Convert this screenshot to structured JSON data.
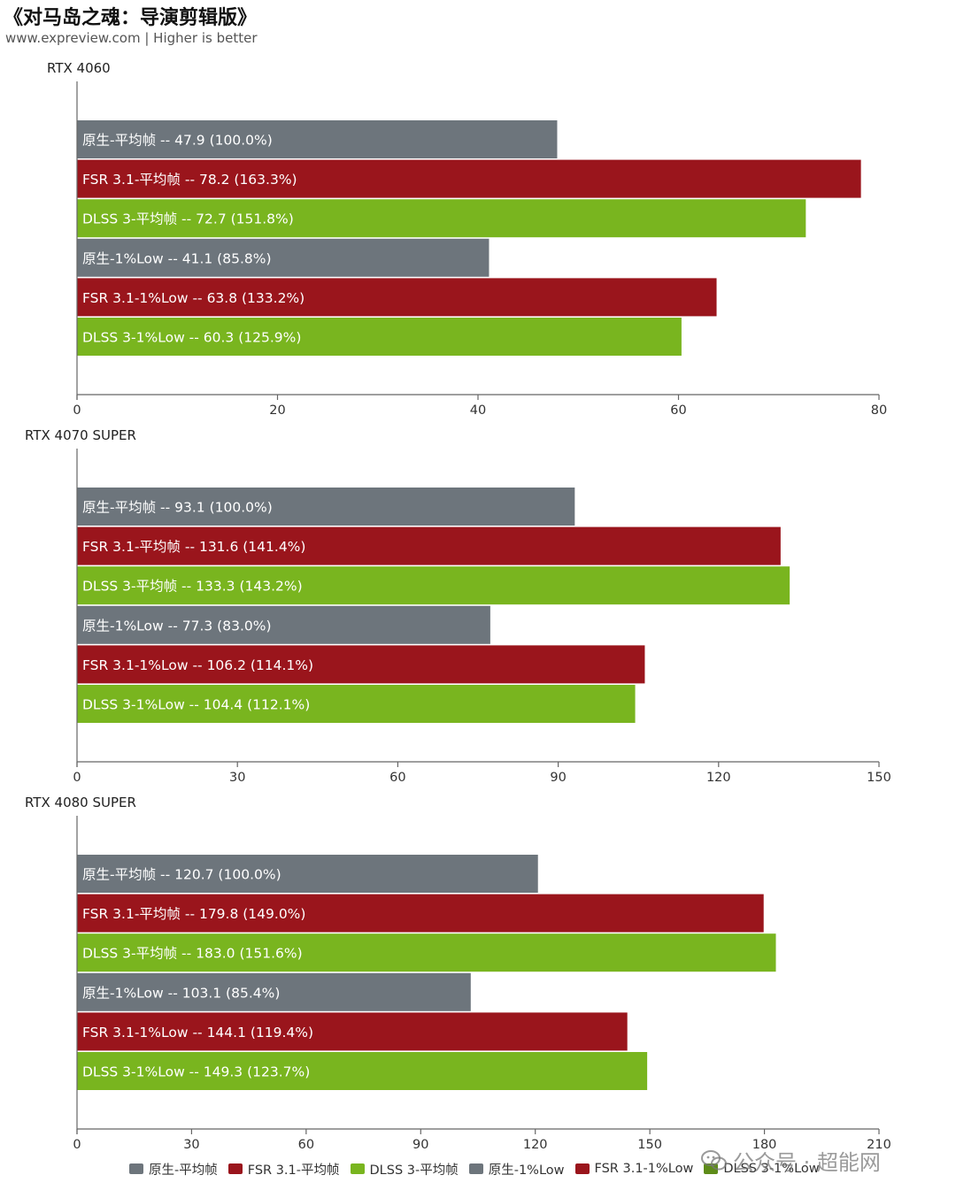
{
  "header": {
    "title": "《对马岛之魂：导演剪辑版》",
    "subtitle": "www.expreview.com | Higher is better"
  },
  "colors": {
    "native": "#6d757c",
    "fsr": "#9a151c",
    "dlss": "#79b51f",
    "axis": "#666666"
  },
  "chart_data": [
    {
      "type": "bar",
      "orientation": "horizontal",
      "title": "RTX 4060",
      "xlim": [
        0,
        80
      ],
      "ticks": [
        0,
        20,
        40,
        60,
        80
      ],
      "bars": [
        {
          "label": "原生-平均帧  --  47.9 (100.0%)",
          "value": 47.9,
          "series": "native"
        },
        {
          "label": "FSR 3.1-平均帧  --  78.2 (163.3%)",
          "value": 78.2,
          "series": "fsr"
        },
        {
          "label": "DLSS 3-平均帧  --  72.7 (151.8%)",
          "value": 72.7,
          "series": "dlss"
        },
        {
          "label": "原生-1%Low  --  41.1 (85.8%)",
          "value": 41.1,
          "series": "native"
        },
        {
          "label": "FSR 3.1-1%Low  --  63.8 (133.2%)",
          "value": 63.8,
          "series": "fsr"
        },
        {
          "label": "DLSS 3-1%Low  --  60.3 (125.9%)",
          "value": 60.3,
          "series": "dlss"
        }
      ]
    },
    {
      "type": "bar",
      "orientation": "horizontal",
      "title": "RTX 4070 SUPER",
      "xlim": [
        0,
        150
      ],
      "ticks": [
        0,
        30,
        60,
        90,
        120,
        150
      ],
      "bars": [
        {
          "label": "原生-平均帧  --  93.1 (100.0%)",
          "value": 93.1,
          "series": "native"
        },
        {
          "label": "FSR 3.1-平均帧  --  131.6 (141.4%)",
          "value": 131.6,
          "series": "fsr"
        },
        {
          "label": "DLSS 3-平均帧  --  133.3 (143.2%)",
          "value": 133.3,
          "series": "dlss"
        },
        {
          "label": "原生-1%Low  --  77.3 (83.0%)",
          "value": 77.3,
          "series": "native"
        },
        {
          "label": "FSR 3.1-1%Low  --  106.2 (114.1%)",
          "value": 106.2,
          "series": "fsr"
        },
        {
          "label": "DLSS 3-1%Low  --  104.4 (112.1%)",
          "value": 104.4,
          "series": "dlss"
        }
      ]
    },
    {
      "type": "bar",
      "orientation": "horizontal",
      "title": "RTX 4080 SUPER",
      "xlim": [
        0,
        210
      ],
      "ticks": [
        0,
        30,
        60,
        90,
        120,
        150,
        180,
        210
      ],
      "bars": [
        {
          "label": "原生-平均帧  --  120.7 (100.0%)",
          "value": 120.7,
          "series": "native"
        },
        {
          "label": "FSR 3.1-平均帧  --  179.8 (149.0%)",
          "value": 179.8,
          "series": "fsr"
        },
        {
          "label": "DLSS 3-平均帧  --  183.0 (151.6%)",
          "value": 183.0,
          "series": "dlss"
        },
        {
          "label": "原生-1%Low  --  103.1 (85.4%)",
          "value": 103.1,
          "series": "native"
        },
        {
          "label": "FSR 3.1-1%Low  --  144.1 (119.4%)",
          "value": 144.1,
          "series": "fsr"
        },
        {
          "label": "DLSS 3-1%Low  --  149.3 (123.7%)",
          "value": 149.3,
          "series": "dlss"
        }
      ]
    }
  ],
  "legend": [
    {
      "label": "原生-平均帧",
      "color": "#6d757c"
    },
    {
      "label": "FSR 3.1-平均帧",
      "color": "#9a151c"
    },
    {
      "label": "DLSS 3-平均帧",
      "color": "#79b51f"
    },
    {
      "label": "原生-1%Low",
      "color": "#6d757c"
    },
    {
      "label": "FSR 3.1-1%Low",
      "color": "#9a151c"
    },
    {
      "label": "DLSS 3-1%Low",
      "color": "#5e8c19"
    }
  ],
  "watermark": {
    "text": "公众号 · 超能网",
    "icon": "wechat-icon"
  }
}
